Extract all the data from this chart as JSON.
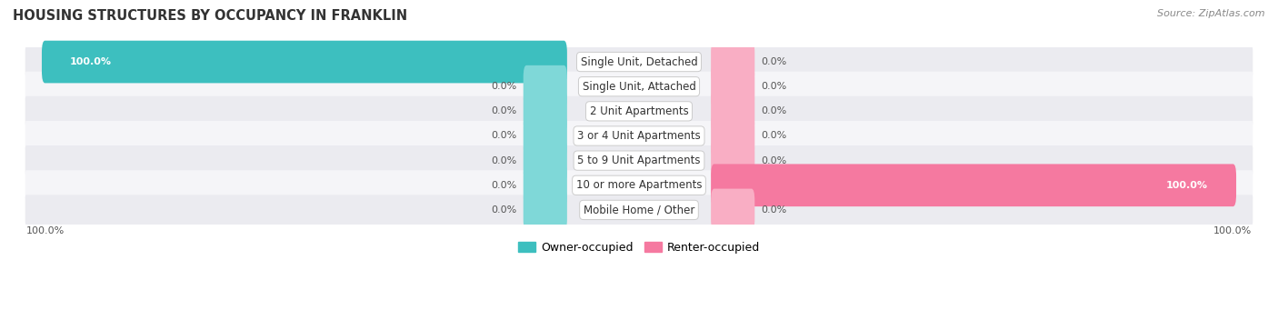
{
  "title": "HOUSING STRUCTURES BY OCCUPANCY IN FRANKLIN",
  "source": "Source: ZipAtlas.com",
  "categories": [
    "Single Unit, Detached",
    "Single Unit, Attached",
    "2 Unit Apartments",
    "3 or 4 Unit Apartments",
    "5 to 9 Unit Apartments",
    "10 or more Apartments",
    "Mobile Home / Other"
  ],
  "owner_values": [
    100.0,
    0.0,
    0.0,
    0.0,
    0.0,
    0.0,
    0.0
  ],
  "renter_values": [
    0.0,
    0.0,
    0.0,
    0.0,
    0.0,
    100.0,
    0.0
  ],
  "owner_color": "#3dbfbf",
  "renter_color": "#f579a0",
  "stub_owner_color": "#7fd8d8",
  "stub_renter_color": "#f9aec4",
  "row_bg_even": "#ebebf0",
  "row_bg_odd": "#f5f5f8",
  "label_fontsize": 8.5,
  "title_fontsize": 10.5,
  "source_fontsize": 8.0,
  "value_fontsize": 8.0,
  "legend_fontsize": 9.0
}
